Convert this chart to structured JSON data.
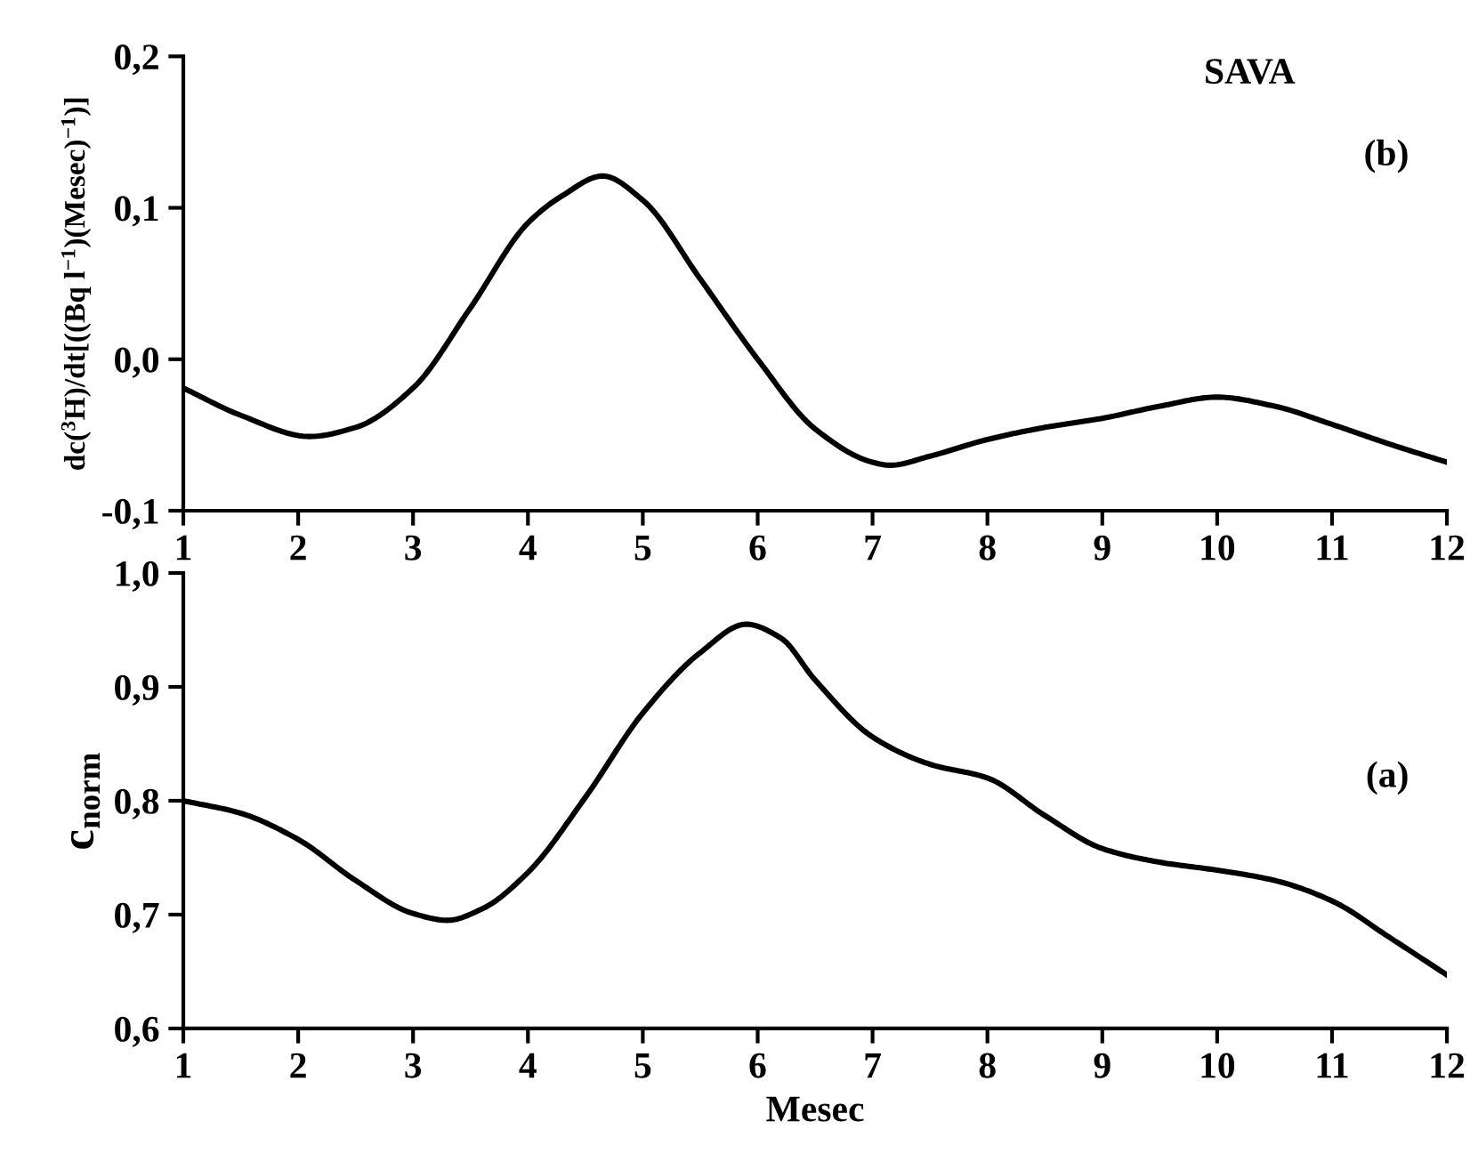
{
  "chart_data": [
    {
      "type": "line",
      "ylabel": "dc($^{3}$H)/dt[((Bq l$^{−1}$)(Mesec)$^{−1}$)]",
      "annotations": [
        "SAVA",
        "(b)"
      ],
      "x": [
        1,
        1.5,
        2.1,
        2.5,
        3,
        3.5,
        4,
        4.3,
        4.65,
        5,
        5.5,
        6,
        6.5,
        7,
        7.15,
        7.5,
        8,
        8.5,
        9,
        9.5,
        10,
        10.5,
        11,
        11.5,
        12
      ],
      "series": [
        {
          "color": "#000000",
          "values": [
            -0.019,
            -0.037,
            -0.051,
            -0.045,
            -0.019,
            0.034,
            0.09,
            0.108,
            0.121,
            0.105,
            0.053,
            0.0,
            -0.046,
            -0.068,
            -0.07,
            -0.064,
            -0.053,
            -0.045,
            -0.039,
            -0.031,
            -0.025,
            -0.031,
            -0.043,
            -0.056,
            -0.068
          ]
        }
      ],
      "xlim": [
        1,
        12
      ],
      "xticks": [
        1,
        2,
        3,
        4,
        5,
        6,
        7,
        8,
        9,
        10,
        11,
        12
      ],
      "ylim": [
        -0.1,
        0.2
      ],
      "yticks": [
        {
          "value": -0.1,
          "label": "-0,1"
        },
        {
          "value": 0.0,
          "label": "0,0"
        },
        {
          "value": 0.1,
          "label": "0,1"
        },
        {
          "value": 0.2,
          "label": "0,2"
        }
      ]
    },
    {
      "type": "line",
      "xlabel": "Mesec",
      "ylabel": "c$_{norm}$",
      "annotations": [
        "(a)"
      ],
      "x": [
        1,
        1.5,
        2,
        2.5,
        3,
        3.3,
        3.6,
        4,
        4.5,
        5,
        5.5,
        5.9,
        6.2,
        6.5,
        7,
        7.5,
        8,
        8.5,
        9,
        9.5,
        10,
        10.5,
        11,
        11.5,
        12
      ],
      "series": [
        {
          "color": "#000000",
          "values": [
            0.8,
            0.789,
            0.766,
            0.73,
            0.701,
            0.695,
            0.705,
            0.737,
            0.803,
            0.877,
            0.93,
            0.955,
            0.943,
            0.906,
            0.856,
            0.832,
            0.82,
            0.787,
            0.758,
            0.746,
            0.739,
            0.73,
            0.712,
            0.68,
            0.647
          ]
        }
      ],
      "xlim": [
        1,
        12
      ],
      "xticks": [
        1,
        2,
        3,
        4,
        5,
        6,
        7,
        8,
        9,
        10,
        11,
        12
      ],
      "ylim": [
        0.6,
        1.0
      ],
      "yticks": [
        {
          "value": 0.6,
          "label": "0,6"
        },
        {
          "value": 0.7,
          "label": "0,7"
        },
        {
          "value": 0.8,
          "label": "0,8"
        },
        {
          "value": 0.9,
          "label": "0,9"
        },
        {
          "value": 1.0,
          "label": "1,0"
        }
      ]
    }
  ]
}
